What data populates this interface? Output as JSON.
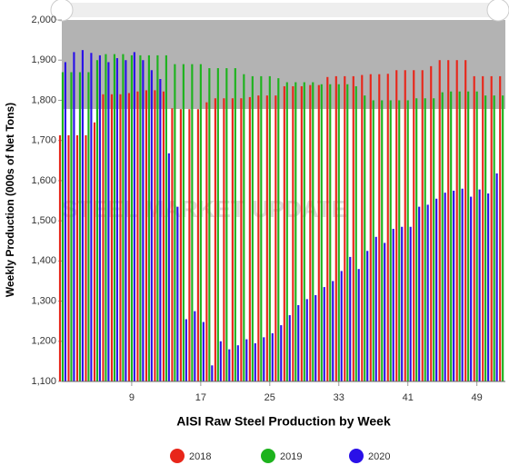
{
  "chart_data": {
    "type": "bar",
    "xlabel": "AISI Raw Steel Production by Week",
    "ylabel": "Weekly Production (000s of Net Tons)",
    "watermark": "STEEL MARKET UPDATE",
    "x": [
      1,
      2,
      3,
      4,
      5,
      6,
      7,
      8,
      9,
      10,
      11,
      12,
      13,
      14,
      15,
      16,
      17,
      18,
      19,
      20,
      21,
      22,
      23,
      24,
      25,
      26,
      27,
      28,
      29,
      30,
      31,
      32,
      33,
      34,
      35,
      36,
      37,
      38,
      39,
      40,
      41,
      42,
      43,
      44,
      45,
      46,
      47,
      48,
      49,
      50,
      51,
      52
    ],
    "xlim": [
      0.9,
      52.3
    ],
    "xticks": [
      9,
      17,
      25,
      33,
      41,
      49
    ],
    "ylim": [
      1100,
      2000
    ],
    "yticks": [
      {
        "value": 1100,
        "label": "1,100"
      },
      {
        "value": 1200,
        "label": "1,200"
      },
      {
        "value": 1300,
        "label": "1,300"
      },
      {
        "value": 1400,
        "label": "1,400"
      },
      {
        "value": 1500,
        "label": "1,500"
      },
      {
        "value": 1600,
        "label": "1,600"
      },
      {
        "value": 1700,
        "label": "1,700"
      },
      {
        "value": 1800,
        "label": "1,800"
      },
      {
        "value": 1900,
        "label": "1,900"
      },
      {
        "value": 2000,
        "label": "2,000"
      }
    ],
    "legend": "bottom",
    "series": [
      {
        "name": "2018",
        "color": "#e8261a",
        "values": [
          1713,
          1713,
          1713,
          1713,
          1745,
          1815,
          1815,
          1815,
          1818,
          1822,
          1825,
          1825,
          1822,
          1780,
          1778,
          1778,
          1778,
          1795,
          1805,
          1805,
          1805,
          1805,
          1808,
          1812,
          1812,
          1812,
          1835,
          1835,
          1835,
          1838,
          1838,
          1858,
          1860,
          1860,
          1860,
          1863,
          1865,
          1865,
          1866,
          1875,
          1875,
          1875,
          1875,
          1885,
          1900,
          1900,
          1900,
          1900,
          1860,
          1860,
          1860,
          1860
        ]
      },
      {
        "name": "2019",
        "color": "#1db31d",
        "values": [
          1870,
          1870,
          1870,
          1870,
          1900,
          1915,
          1915,
          1915,
          1912,
          1912,
          1912,
          1912,
          1912,
          1890,
          1890,
          1890,
          1890,
          1880,
          1880,
          1880,
          1880,
          1865,
          1860,
          1860,
          1860,
          1855,
          1845,
          1845,
          1845,
          1845,
          1840,
          1840,
          1840,
          1840,
          1835,
          1812,
          1800,
          1800,
          1800,
          1800,
          1800,
          1805,
          1805,
          1805,
          1820,
          1822,
          1822,
          1822,
          1822,
          1812,
          1812,
          1812
        ]
      },
      {
        "name": "2020",
        "color": "#2a10e8",
        "values": [
          1895,
          1920,
          1925,
          1918,
          1912,
          1895,
          1905,
          1900,
          1920,
          1900,
          1875,
          1853,
          1668,
          1535,
          1255,
          1275,
          1248,
          1140,
          1200,
          1180,
          1190,
          1205,
          1195,
          1210,
          1220,
          1240,
          1265,
          1290,
          1305,
          1315,
          1335,
          1350,
          1375,
          1410,
          1380,
          1425,
          1460,
          1445,
          1480,
          1485,
          1485,
          1535,
          1540,
          1555,
          1570,
          1575,
          1580,
          1560,
          1578,
          1568,
          1618,
          null
        ]
      }
    ]
  }
}
